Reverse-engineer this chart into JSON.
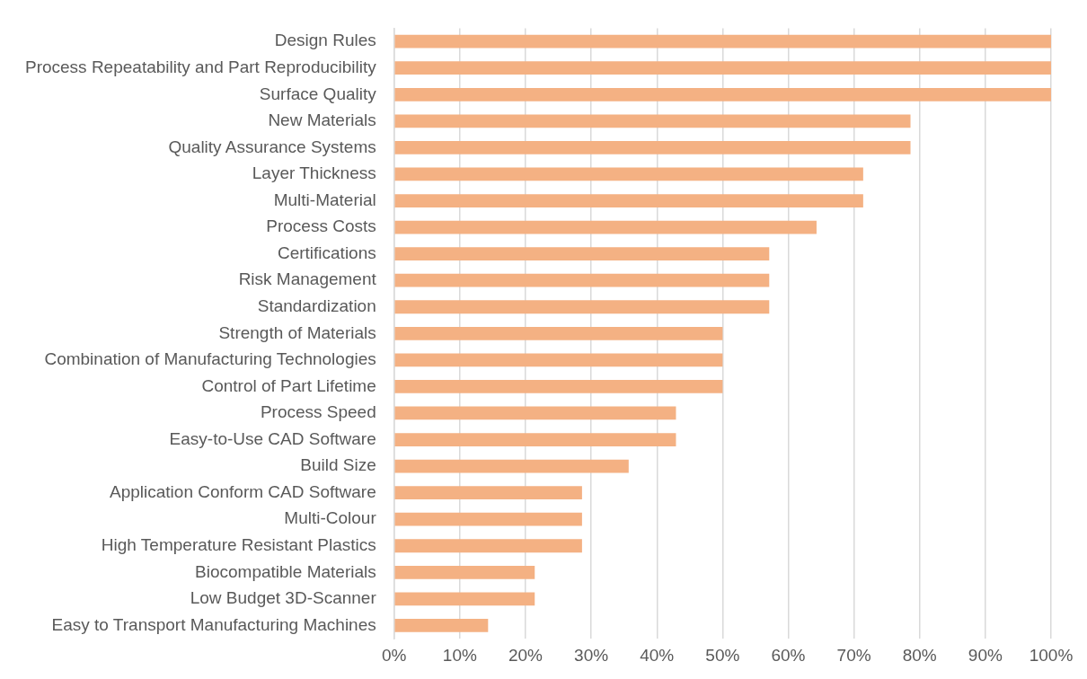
{
  "chart_data": {
    "type": "bar",
    "orientation": "horizontal",
    "categories": [
      "Design Rules",
      "Process Repeatability and Part Reproducibility",
      "Surface Quality",
      "New Materials",
      "Quality Assurance Systems",
      "Layer Thickness",
      "Multi-Material",
      "Process Costs",
      "Certifications",
      "Risk Management",
      "Standardization",
      "Strength of Materials",
      "Combination of Manufacturing Technologies",
      "Control of Part Lifetime",
      "Process Speed",
      "Easy-to-Use CAD Software",
      "Build Size",
      "Application Conform CAD Software",
      "Multi-Colour",
      "High Temperature Resistant Plastics",
      "Biocompatible Materials",
      "Low Budget 3D-Scanner",
      "Easy to Transport Manufacturing Machines"
    ],
    "values": [
      100,
      100,
      100,
      78.6,
      78.6,
      71.4,
      71.4,
      64.3,
      57.1,
      57.1,
      57.1,
      50,
      50,
      50,
      42.9,
      42.9,
      35.7,
      28.6,
      28.6,
      28.6,
      21.4,
      21.4,
      14.3
    ],
    "color": "#f4b183",
    "xlim": [
      0,
      100
    ],
    "xticks": [
      {
        "value": 0,
        "label": "0%"
      },
      {
        "value": 10,
        "label": "10%"
      },
      {
        "value": 20,
        "label": "20%"
      },
      {
        "value": 30,
        "label": "30%"
      },
      {
        "value": 40,
        "label": "40%"
      },
      {
        "value": 50,
        "label": "50%"
      },
      {
        "value": 60,
        "label": "60%"
      },
      {
        "value": 70,
        "label": "70%"
      },
      {
        "value": 80,
        "label": "80%"
      },
      {
        "value": 90,
        "label": "90%"
      },
      {
        "value": 100,
        "label": "100%"
      }
    ],
    "grid": "x",
    "legend": false
  }
}
